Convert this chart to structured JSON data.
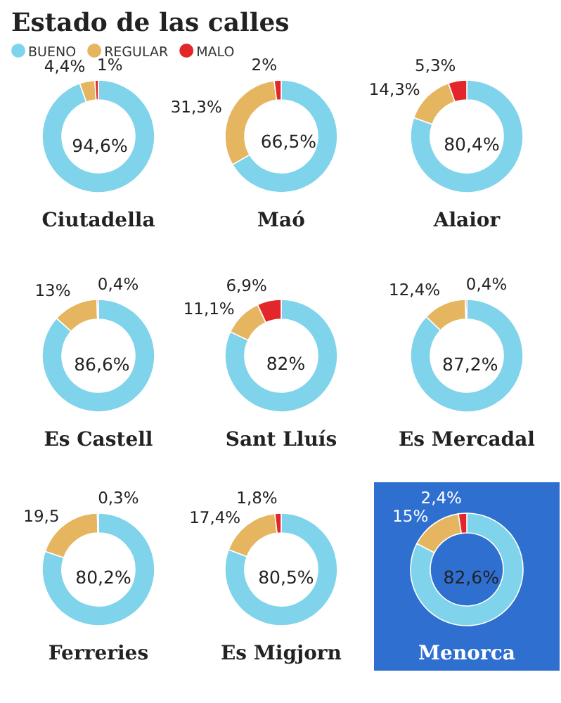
{
  "chart_data": [
    {
      "type": "other",
      "title": "Estado de las calles"
    },
    {
      "type": "donut",
      "title": "Ciutadella",
      "legend": "top",
      "categories": [
        "BUENO",
        "REGULAR",
        "MALO"
      ],
      "values": [
        94.6,
        4.4,
        1
      ],
      "value_labels": [
        "94,6%",
        "4,4%",
        "1%"
      ],
      "colors": [
        "#7fd3ea",
        "#e6b560",
        "#e2262a"
      ]
    },
    {
      "type": "donut",
      "title": "Maó",
      "categories": [
        null,
        null,
        null
      ],
      "values": [
        66.5,
        31.3,
        2
      ],
      "value_labels": [
        "66,5%",
        "31,3%",
        "2%"
      ],
      "colors": [
        "#7fd3ea",
        "#e6b560",
        "#e2262a"
      ]
    },
    {
      "type": "donut",
      "title": "Alaior",
      "categories": [
        null,
        null,
        null
      ],
      "values": [
        80.4,
        14.3,
        5.3
      ],
      "value_labels": [
        "80,4%",
        "14,3%",
        "5,3%"
      ],
      "colors": [
        "#7fd3ea",
        "#e6b560",
        "#e2262a"
      ]
    },
    {
      "type": "donut",
      "title": "Es Castell",
      "categories": [
        null,
        null,
        null
      ],
      "values": [
        86.6,
        13,
        0.4
      ],
      "value_labels": [
        "86,6%",
        "13%",
        "0,4%"
      ],
      "colors": [
        "#7fd3ea",
        "#e6b560",
        "#e2262a"
      ]
    },
    {
      "type": "donut",
      "title": "Sant Lluís",
      "categories": [
        null,
        null,
        null
      ],
      "values": [
        82,
        11.1,
        6.9
      ],
      "value_labels": [
        "82%",
        "11,1%",
        "6,9%"
      ],
      "colors": [
        "#7fd3ea",
        "#e6b560",
        "#e2262a"
      ]
    },
    {
      "type": "donut",
      "title": "Es Mercadal",
      "categories": [
        null,
        null,
        null
      ],
      "values": [
        87.2,
        12.4,
        0.4
      ],
      "value_labels": [
        "87,2%",
        "12,4%",
        "0,4%"
      ],
      "colors": [
        "#7fd3ea",
        "#e6b560",
        "#e2262a"
      ]
    },
    {
      "type": "donut",
      "title": "Ferreries",
      "categories": [
        null,
        null,
        null
      ],
      "values": [
        80.2,
        19.5,
        0.3
      ],
      "value_labels": [
        "80,2%",
        "19,5",
        "0,3%"
      ],
      "colors": [
        "#7fd3ea",
        "#e6b560",
        "#e2262a"
      ]
    },
    {
      "type": "donut",
      "title": "Es Migjorn",
      "categories": [
        null,
        null,
        null
      ],
      "values": [
        80.5,
        17.4,
        1.8
      ],
      "value_labels": [
        "80,5%",
        "17,4%",
        "1,8%"
      ],
      "colors": [
        "#7fd3ea",
        "#e6b560",
        "#e2262a"
      ]
    },
    {
      "type": "donut",
      "title": "Menorca",
      "categories": [
        null,
        null,
        null
      ],
      "values": [
        82.6,
        15,
        2.4
      ],
      "value_labels": [
        "82,6%",
        "15%",
        "2,4%"
      ],
      "colors": [
        "#7fd3ea",
        "#e6b560",
        "#e2262a"
      ]
    }
  ]
}
